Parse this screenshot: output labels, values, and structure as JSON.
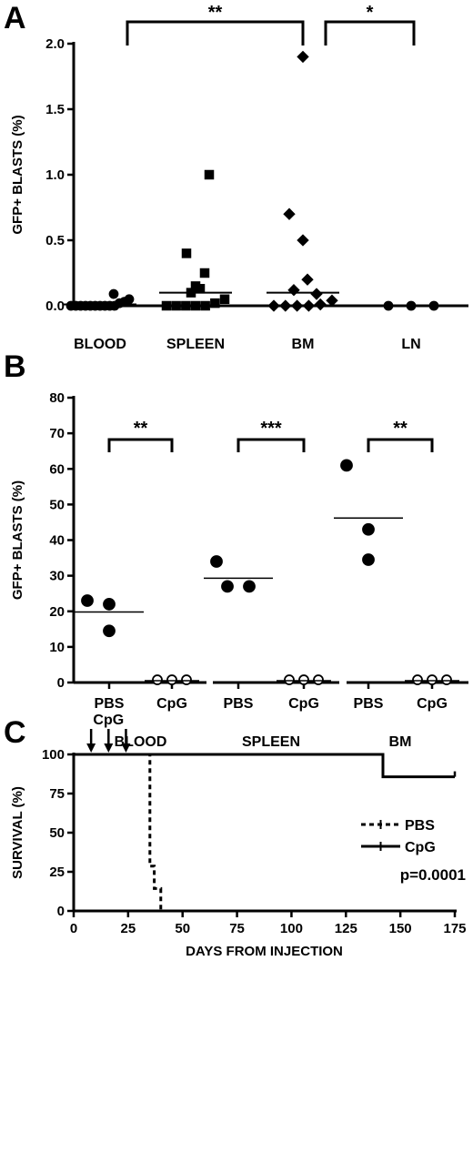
{
  "chart_data": [
    {
      "panel": "A",
      "type": "scatter",
      "ylabel": "GFP+ BLASTS (%)",
      "ylim": [
        0,
        2.0
      ],
      "yticks": [
        "0.0",
        "0.5",
        "1.0",
        "1.5",
        "2.0"
      ],
      "categories": [
        "BLOOD",
        "SPLEEN",
        "BM",
        "LN"
      ],
      "series": [
        {
          "category": "BLOOD",
          "marker": "circle",
          "values": [
            0.0,
            0.0,
            0.0,
            0.0,
            0.0,
            0.0,
            0.0,
            0.0,
            0.0,
            0.0,
            0.02,
            0.03,
            0.05,
            0.09
          ],
          "median": 0.01
        },
        {
          "category": "SPLEEN",
          "marker": "square",
          "values": [
            0.0,
            0.0,
            0.0,
            0.0,
            0.0,
            0.02,
            0.05,
            0.1,
            0.13,
            0.15,
            0.25,
            0.4,
            1.0
          ],
          "median": 0.1
        },
        {
          "category": "BM",
          "marker": "diamond",
          "values": [
            0.0,
            0.0,
            0.0,
            0.0,
            0.01,
            0.04,
            0.09,
            0.12,
            0.2,
            0.5,
            0.7,
            1.9
          ],
          "median": 0.1
        },
        {
          "category": "LN",
          "marker": "circle",
          "values": [
            0.0,
            0.0,
            0.0
          ],
          "median": 0.0
        }
      ],
      "significance": [
        {
          "from": "BLOOD",
          "to": "BM",
          "label": "**"
        },
        {
          "from": "BM",
          "to": "LN",
          "label": "*"
        }
      ]
    },
    {
      "panel": "B",
      "type": "scatter",
      "ylabel": "GFP+ BLASTS (%)",
      "ylim": [
        0,
        80
      ],
      "yticks": [
        "0",
        "10",
        "20",
        "30",
        "40",
        "50",
        "60",
        "70",
        "80"
      ],
      "groups": [
        {
          "tissue": "BLOOD",
          "conditions": [
            {
              "label": "PBS",
              "marker": "filled",
              "values": [
                23,
                22,
                14.5
              ],
              "mean": 19.8
            },
            {
              "label": "CpG",
              "marker": "open",
              "values": [
                0.5,
                0.5,
                0.5
              ],
              "mean": 0.5
            }
          ],
          "significance": "**"
        },
        {
          "tissue": "SPLEEN",
          "conditions": [
            {
              "label": "PBS",
              "marker": "filled",
              "values": [
                34,
                27,
                27
              ],
              "mean": 29.3
            },
            {
              "label": "CpG",
              "marker": "open",
              "values": [
                0.5,
                0.5,
                0.5
              ],
              "mean": 0.5
            }
          ],
          "significance": "***"
        },
        {
          "tissue": "BM",
          "conditions": [
            {
              "label": "PBS",
              "marker": "filled",
              "values": [
                61,
                43,
                34.5
              ],
              "mean": 46.2
            },
            {
              "label": "CpG",
              "marker": "open",
              "values": [
                0.5,
                0.5,
                0.5
              ],
              "mean": 0.5
            }
          ],
          "significance": "**"
        }
      ]
    },
    {
      "panel": "C",
      "type": "line",
      "xlabel": "DAYS FROM INJECTION",
      "ylabel": "SURVIVAL (%)",
      "xlim": [
        0,
        175
      ],
      "ylim": [
        0,
        100
      ],
      "xticks": [
        "0",
        "25",
        "50",
        "75",
        "100",
        "125",
        "150",
        "175"
      ],
      "yticks": [
        "0",
        "25",
        "50",
        "75",
        "100"
      ],
      "arrows_label": "CpG",
      "arrows_x": [
        8,
        16,
        24
      ],
      "series": [
        {
          "name": "PBS",
          "style": "dashed",
          "steps": [
            [
              0,
              100
            ],
            [
              35,
              100
            ],
            [
              35,
              28.6
            ],
            [
              37,
              28.6
            ],
            [
              37,
              14.3
            ],
            [
              40,
              14.3
            ],
            [
              40,
              0
            ]
          ]
        },
        {
          "name": "CpG",
          "style": "solid",
          "steps": [
            [
              0,
              100
            ],
            [
              142,
              100
            ],
            [
              142,
              85.7
            ],
            [
              175,
              85.7
            ]
          ]
        }
      ],
      "annotation": "p=0.0001"
    }
  ],
  "panel_letters": [
    "A",
    "B",
    "C"
  ]
}
